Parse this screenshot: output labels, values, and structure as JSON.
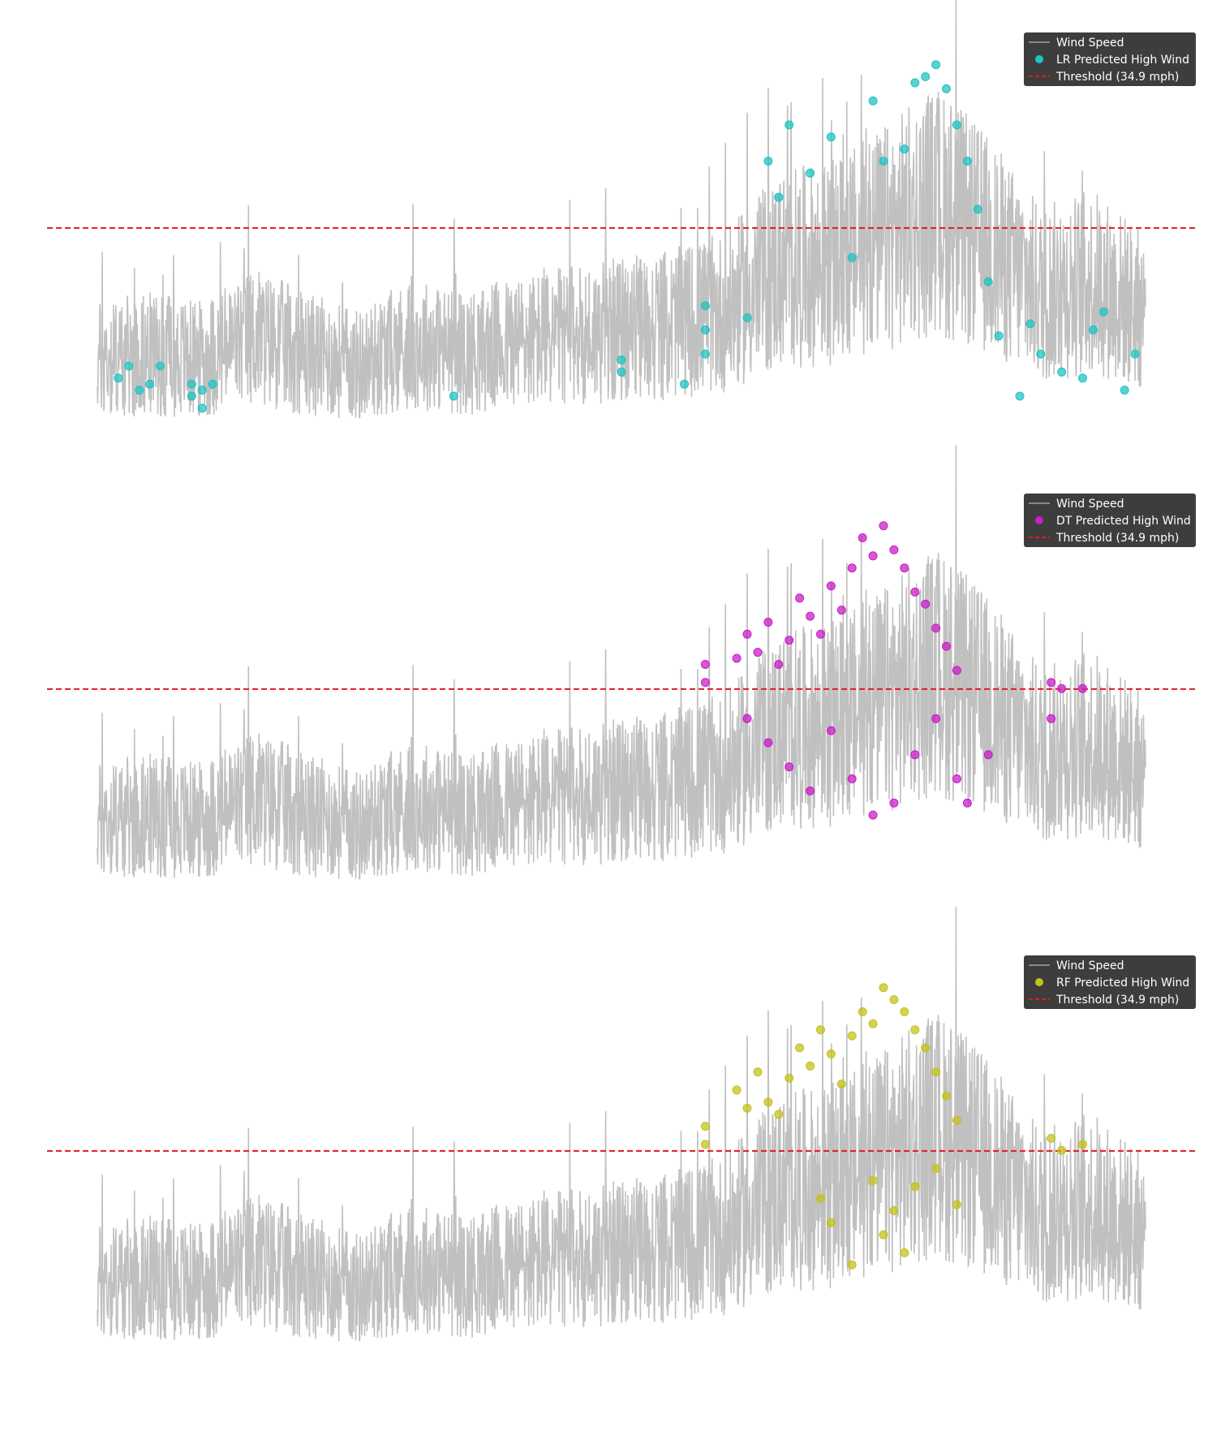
{
  "figure": {
    "background": "#ffffff",
    "grid": false,
    "axes_visible": false
  },
  "chart_data": [
    {
      "type": "line",
      "panel": "LR",
      "title": "",
      "xlabel": "",
      "ylabel": "",
      "ylim": [
        0,
        66
      ],
      "legend": {
        "placement": "top-right",
        "background": "#333333",
        "entries": [
          "Wind Speed",
          "LR Predicted High Wind",
          "Threshold (34.9 mph)"
        ]
      },
      "threshold": {
        "label": "Threshold (34.9 mph)",
        "value": 34.9,
        "color": "#e31a1c",
        "style": "dashed"
      },
      "series": [
        {
          "name": "Wind Speed",
          "kind": "line",
          "color": "#bdbdbd",
          "envelope_x": [
            0,
            5,
            10,
            15,
            20,
            25,
            30,
            35,
            40,
            45,
            50,
            55,
            60,
            65,
            70,
            75,
            80,
            85,
            90,
            95,
            100
          ],
          "envelope_y": [
            13,
            14,
            13,
            17,
            14,
            12,
            16,
            14,
            16,
            17,
            18,
            19,
            21,
            28,
            29,
            33,
            38,
            32,
            24,
            26,
            21
          ]
        },
        {
          "name": "LR Predicted High Wind",
          "kind": "scatter",
          "color": "#22c3c3",
          "points": [
            [
              2,
              10
            ],
            [
              3,
              12
            ],
            [
              4,
              8
            ],
            [
              5,
              9
            ],
            [
              6,
              12
            ],
            [
              9,
              9
            ],
            [
              9,
              7
            ],
            [
              10,
              5
            ],
            [
              10,
              8
            ],
            [
              11,
              9
            ],
            [
              34,
              7
            ],
            [
              50,
              11
            ],
            [
              50,
              13
            ],
            [
              56,
              9
            ],
            [
              58,
              22
            ],
            [
              58,
              18
            ],
            [
              58,
              14
            ],
            [
              62,
              20
            ],
            [
              64,
              46
            ],
            [
              65,
              40
            ],
            [
              66,
              52
            ],
            [
              68,
              44
            ],
            [
              70,
              50
            ],
            [
              72,
              30
            ],
            [
              74,
              56
            ],
            [
              75,
              46
            ],
            [
              77,
              48
            ],
            [
              78,
              59
            ],
            [
              79,
              60
            ],
            [
              80,
              62
            ],
            [
              81,
              58
            ],
            [
              82,
              52
            ],
            [
              83,
              46
            ],
            [
              84,
              38
            ],
            [
              85,
              26
            ],
            [
              86,
              17
            ],
            [
              88,
              7
            ],
            [
              89,
              19
            ],
            [
              90,
              14
            ],
            [
              92,
              11
            ],
            [
              94,
              10
            ],
            [
              95,
              18
            ],
            [
              96,
              21
            ],
            [
              98,
              8
            ],
            [
              99,
              14
            ]
          ]
        }
      ]
    },
    {
      "type": "line",
      "panel": "DT",
      "title": "",
      "xlabel": "",
      "ylabel": "",
      "ylim": [
        0,
        66
      ],
      "legend": {
        "placement": "top-right",
        "background": "#333333",
        "entries": [
          "Wind Speed",
          "DT Predicted High Wind",
          "Threshold (34.9 mph)"
        ]
      },
      "threshold": {
        "label": "Threshold (34.9 mph)",
        "value": 34.9,
        "color": "#e31a1c",
        "style": "dashed"
      },
      "series": [
        {
          "name": "Wind Speed",
          "kind": "line",
          "color": "#bdbdbd",
          "envelope_x": [
            0,
            5,
            10,
            15,
            20,
            25,
            30,
            35,
            40,
            45,
            50,
            55,
            60,
            65,
            70,
            75,
            80,
            85,
            90,
            95,
            100
          ],
          "envelope_y": [
            13,
            14,
            13,
            17,
            14,
            12,
            16,
            14,
            16,
            17,
            18,
            19,
            21,
            28,
            29,
            33,
            38,
            32,
            24,
            26,
            21
          ]
        },
        {
          "name": "DT Predicted High Wind",
          "kind": "scatter",
          "color": "#c71fc7",
          "points": [
            [
              58,
              39
            ],
            [
              58,
              36
            ],
            [
              61,
              40
            ],
            [
              62,
              44
            ],
            [
              63,
              41
            ],
            [
              64,
              46
            ],
            [
              65,
              39
            ],
            [
              66,
              43
            ],
            [
              67,
              50
            ],
            [
              68,
              47
            ],
            [
              69,
              44
            ],
            [
              70,
              52
            ],
            [
              71,
              48
            ],
            [
              72,
              55
            ],
            [
              73,
              60
            ],
            [
              74,
              57
            ],
            [
              75,
              62
            ],
            [
              76,
              58
            ],
            [
              77,
              55
            ],
            [
              78,
              51
            ],
            [
              79,
              49
            ],
            [
              80,
              45
            ],
            [
              81,
              42
            ],
            [
              82,
              38
            ],
            [
              62,
              30
            ],
            [
              64,
              26
            ],
            [
              66,
              22
            ],
            [
              68,
              18
            ],
            [
              70,
              28
            ],
            [
              72,
              20
            ],
            [
              74,
              14
            ],
            [
              76,
              16
            ],
            [
              78,
              24
            ],
            [
              80,
              30
            ],
            [
              82,
              20
            ],
            [
              83,
              16
            ],
            [
              85,
              24
            ],
            [
              91,
              36
            ],
            [
              92,
              35
            ],
            [
              94,
              35
            ],
            [
              91,
              30
            ]
          ]
        }
      ]
    },
    {
      "type": "line",
      "panel": "RF",
      "title": "",
      "xlabel": "",
      "ylabel": "",
      "ylim": [
        0,
        66
      ],
      "legend": {
        "placement": "top-right",
        "background": "#333333",
        "entries": [
          "Wind Speed",
          "RF Predicted High Wind",
          "Threshold (34.9 mph)"
        ]
      },
      "threshold": {
        "label": "Threshold (34.9 mph)",
        "value": 34.9,
        "color": "#e31a1c",
        "style": "dashed"
      },
      "series": [
        {
          "name": "Wind Speed",
          "kind": "line",
          "color": "#bdbdbd",
          "envelope_x": [
            0,
            5,
            10,
            15,
            20,
            25,
            30,
            35,
            40,
            45,
            50,
            55,
            60,
            65,
            70,
            75,
            80,
            85,
            90,
            95,
            100
          ],
          "envelope_y": [
            13,
            14,
            13,
            17,
            14,
            12,
            16,
            14,
            16,
            17,
            18,
            19,
            21,
            28,
            29,
            33,
            38,
            32,
            24,
            26,
            21
          ]
        },
        {
          "name": "RF Predicted High Wind",
          "kind": "scatter",
          "color": "#c4c21f",
          "points": [
            [
              58,
              39
            ],
            [
              58,
              36
            ],
            [
              61,
              45
            ],
            [
              62,
              42
            ],
            [
              63,
              48
            ],
            [
              64,
              43
            ],
            [
              65,
              41
            ],
            [
              66,
              47
            ],
            [
              67,
              52
            ],
            [
              68,
              49
            ],
            [
              69,
              55
            ],
            [
              70,
              51
            ],
            [
              71,
              46
            ],
            [
              72,
              54
            ],
            [
              73,
              58
            ],
            [
              74,
              56
            ],
            [
              75,
              62
            ],
            [
              76,
              60
            ],
            [
              77,
              58
            ],
            [
              78,
              55
            ],
            [
              79,
              52
            ],
            [
              80,
              48
            ],
            [
              81,
              44
            ],
            [
              82,
              40
            ],
            [
              69,
              27
            ],
            [
              70,
              23
            ],
            [
              72,
              16
            ],
            [
              74,
              30
            ],
            [
              75,
              21
            ],
            [
              76,
              25
            ],
            [
              77,
              18
            ],
            [
              78,
              29
            ],
            [
              80,
              32
            ],
            [
              82,
              26
            ],
            [
              91,
              37
            ],
            [
              92,
              35
            ],
            [
              94,
              36
            ]
          ]
        }
      ]
    }
  ]
}
